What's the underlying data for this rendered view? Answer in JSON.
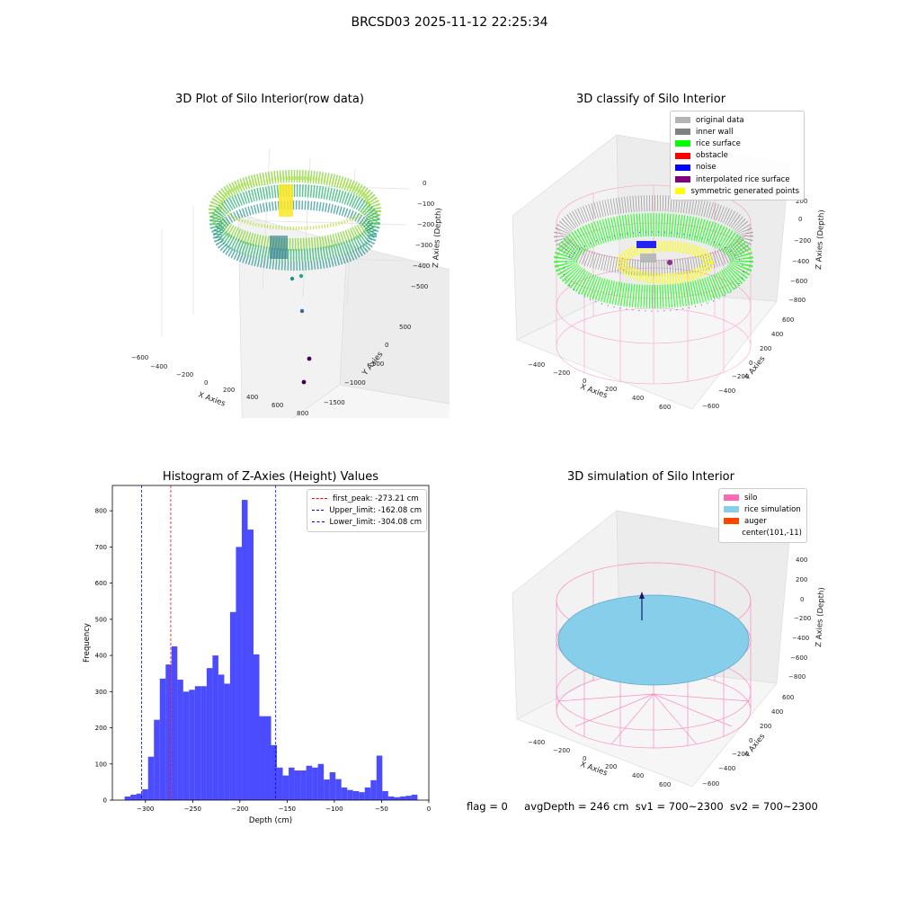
{
  "figure": {
    "suptitle": "BRCSD03 2025-11-12 22:25:34"
  },
  "panels": {
    "raw": {
      "title": "3D Plot of Silo Interior(row data)",
      "xlabel": "X Axies",
      "ylabel": "Y Axies",
      "zlabel": "Z Axies (Depth)",
      "xticks": [
        "−600",
        "−400",
        "−200",
        "0",
        "200",
        "400",
        "600",
        "800"
      ],
      "yticks": [
        "500",
        "0",
        "−500",
        "−1000",
        "−1500"
      ],
      "zticks": [
        "0",
        "−100",
        "−200",
        "−300",
        "−400",
        "−500"
      ]
    },
    "classify": {
      "title": "3D classify of Silo Interior",
      "xlabel": "X Axies",
      "ylabel": "Y Axies",
      "zlabel": "Z Axies (Depth)",
      "xticks": [
        "−400",
        "−200",
        "0",
        "200",
        "400",
        "600"
      ],
      "yticks": [
        "600",
        "400",
        "200",
        "0",
        "−200",
        "−400",
        "−600"
      ],
      "zticks": [
        "200",
        "0",
        "−200",
        "−400",
        "−600",
        "−800"
      ],
      "legend": [
        {
          "label": "original data",
          "color": "#b4b4b4"
        },
        {
          "label": "inner wall",
          "color": "#808080"
        },
        {
          "label": "rice surface",
          "color": "#00ff00"
        },
        {
          "label": "obstacle",
          "color": "#ff0000"
        },
        {
          "label": "noise",
          "color": "#0000ff"
        },
        {
          "label": "interpolated rice surface",
          "color": "#800080"
        },
        {
          "label": "symmetric generated points",
          "color": "#ffff00"
        }
      ]
    },
    "simulation": {
      "title": "3D simulation of Silo Interior",
      "xlabel": "X Axies",
      "ylabel": "Y Axies",
      "zlabel": "Z Axies (Depth)",
      "xticks": [
        "−400",
        "−200",
        "0",
        "200",
        "400",
        "600"
      ],
      "yticks": [
        "600",
        "400",
        "200",
        "0",
        "−200",
        "−400",
        "−600"
      ],
      "zticks": [
        "400",
        "200",
        "0",
        "−200",
        "−400",
        "−600",
        "−800"
      ],
      "legend": [
        {
          "label": "silo",
          "color": "#ff69b4"
        },
        {
          "label": "rice simulation",
          "color": "#87ceeb"
        },
        {
          "label": "auger",
          "color": "#ff4500"
        },
        {
          "label": "center(101,-11)",
          "color": ""
        }
      ]
    }
  },
  "status": {
    "flag": "flag = 0",
    "avg_depth": "avgDepth = 246 cm",
    "sv1": "sv1 = 700~2300",
    "sv2": "sv2 = 700~2300"
  },
  "chart_data": {
    "type": "bar",
    "title": "Histogram of Z-Axies (Height) Values",
    "xlabel": "Depth (cm)",
    "ylabel": "Frequency",
    "xlim": [
      -335,
      0
    ],
    "ylim": [
      0,
      870
    ],
    "x_ticks": [
      -300,
      -250,
      -200,
      -150,
      -100,
      -50,
      0
    ],
    "x_tick_labels": [
      "−300",
      "−250",
      "−200",
      "−150",
      "−100",
      "−50",
      "0"
    ],
    "y_ticks": [
      0,
      100,
      200,
      300,
      400,
      500,
      600,
      700,
      800
    ],
    "bar_color": "#0000ff",
    "bins": [
      {
        "x0": -322.0,
        "x1": -315.8,
        "value": 10
      },
      {
        "x0": -315.8,
        "x1": -309.6,
        "value": 15
      },
      {
        "x0": -309.6,
        "x1": -303.4,
        "value": 18
      },
      {
        "x0": -303.4,
        "x1": -297.2,
        "value": 30
      },
      {
        "x0": -297.2,
        "x1": -291.0,
        "value": 120
      },
      {
        "x0": -291.0,
        "x1": -284.8,
        "value": 222
      },
      {
        "x0": -284.8,
        "x1": -278.6,
        "value": 336
      },
      {
        "x0": -278.6,
        "x1": -272.4,
        "value": 375
      },
      {
        "x0": -272.4,
        "x1": -266.2,
        "value": 425
      },
      {
        "x0": -266.2,
        "x1": -260.0,
        "value": 333
      },
      {
        "x0": -260.0,
        "x1": -253.8,
        "value": 300
      },
      {
        "x0": -253.8,
        "x1": -247.6,
        "value": 305
      },
      {
        "x0": -247.6,
        "x1": -241.4,
        "value": 315
      },
      {
        "x0": -241.4,
        "x1": -235.2,
        "value": 315
      },
      {
        "x0": -235.2,
        "x1": -229.0,
        "value": 365
      },
      {
        "x0": -229.0,
        "x1": -222.8,
        "value": 400
      },
      {
        "x0": -222.8,
        "x1": -216.6,
        "value": 347
      },
      {
        "x0": -216.6,
        "x1": -210.4,
        "value": 322
      },
      {
        "x0": -210.4,
        "x1": -204.2,
        "value": 520
      },
      {
        "x0": -204.2,
        "x1": -198.0,
        "value": 700
      },
      {
        "x0": -198.0,
        "x1": -191.8,
        "value": 830
      },
      {
        "x0": -191.8,
        "x1": -185.6,
        "value": 748
      },
      {
        "x0": -185.6,
        "x1": -179.4,
        "value": 403
      },
      {
        "x0": -179.4,
        "x1": -173.2,
        "value": 232
      },
      {
        "x0": -173.2,
        "x1": -167.0,
        "value": 232
      },
      {
        "x0": -167.0,
        "x1": -160.8,
        "value": 152
      },
      {
        "x0": -160.8,
        "x1": -154.6,
        "value": 90
      },
      {
        "x0": -154.6,
        "x1": -148.4,
        "value": 68
      },
      {
        "x0": -148.4,
        "x1": -142.2,
        "value": 90
      },
      {
        "x0": -142.2,
        "x1": -136.0,
        "value": 82
      },
      {
        "x0": -136.0,
        "x1": -129.8,
        "value": 82
      },
      {
        "x0": -129.8,
        "x1": -123.6,
        "value": 95
      },
      {
        "x0": -123.6,
        "x1": -117.4,
        "value": 90
      },
      {
        "x0": -117.4,
        "x1": -111.2,
        "value": 100
      },
      {
        "x0": -111.2,
        "x1": -105.0,
        "value": 57
      },
      {
        "x0": -105.0,
        "x1": -98.8,
        "value": 77
      },
      {
        "x0": -98.8,
        "x1": -92.6,
        "value": 58
      },
      {
        "x0": -92.6,
        "x1": -86.4,
        "value": 35
      },
      {
        "x0": -86.4,
        "x1": -80.2,
        "value": 28
      },
      {
        "x0": -80.2,
        "x1": -74.0,
        "value": 25
      },
      {
        "x0": -74.0,
        "x1": -67.8,
        "value": 22
      },
      {
        "x0": -67.8,
        "x1": -61.6,
        "value": 35
      },
      {
        "x0": -61.6,
        "x1": -55.4,
        "value": 55
      },
      {
        "x0": -55.4,
        "x1": -49.2,
        "value": 123
      },
      {
        "x0": -49.2,
        "x1": -43.0,
        "value": 25
      },
      {
        "x0": -43.0,
        "x1": -36.8,
        "value": 10
      },
      {
        "x0": -36.8,
        "x1": -30.6,
        "value": 8
      },
      {
        "x0": -30.6,
        "x1": -24.4,
        "value": 10
      },
      {
        "x0": -24.4,
        "x1": -18.2,
        "value": 12
      },
      {
        "x0": -18.2,
        "x1": -12.0,
        "value": 15
      }
    ],
    "vlines": [
      {
        "name": "first_peak: -273.21 cm",
        "x": -273.21,
        "color": "#ff0000"
      },
      {
        "name": "Upper_limit: -162.08 cm",
        "x": -162.08,
        "color": "#0000ff"
      },
      {
        "name": "Lower_limit: -304.08 cm",
        "x": -304.08,
        "color": "#0000ff"
      }
    ],
    "grid": false,
    "legend_position": "top-right"
  }
}
